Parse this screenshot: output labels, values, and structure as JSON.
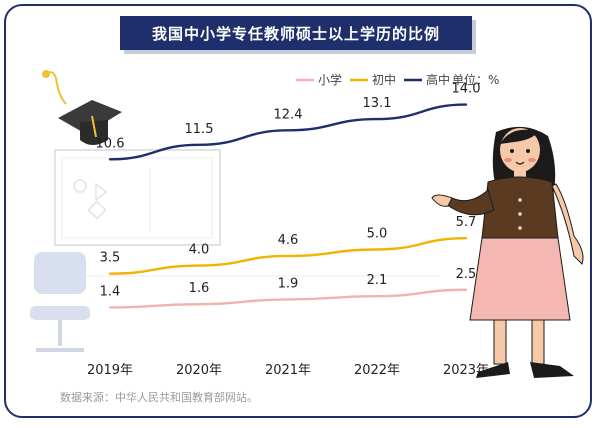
{
  "chart_data": {
    "type": "line",
    "title": "我国中小学专任教师硕士以上学历的比例",
    "unit_label": "单位：%",
    "categories": [
      "2019年",
      "2020年",
      "2021年",
      "2022年",
      "2023年"
    ],
    "series": [
      {
        "name": "小学",
        "color": "#f2b3b0",
        "values": [
          1.4,
          1.6,
          1.9,
          2.1,
          2.5
        ]
      },
      {
        "name": "初中",
        "color": "#f0b400",
        "values": [
          3.5,
          4.0,
          4.6,
          5.0,
          5.7
        ]
      },
      {
        "name": "高中",
        "color": "#1e2f6b",
        "values": [
          10.6,
          11.5,
          12.4,
          13.1,
          14.0
        ]
      }
    ],
    "legend_position": "top-right",
    "grid": false
  },
  "source": "数据来源：中华人民共和国教育部网站。"
}
